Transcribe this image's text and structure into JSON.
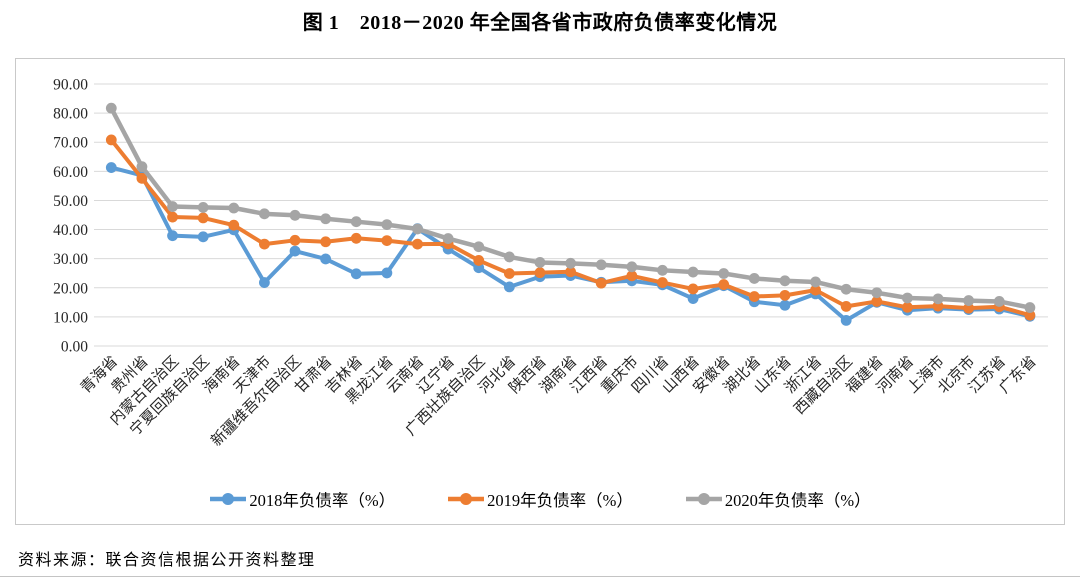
{
  "title": "图 1　2018－2020 年全国各省市政府负债率变化情况",
  "source_note": "资料来源：联合资信根据公开资料整理",
  "chart_data": {
    "type": "line",
    "title": "图 1　2018－2020 年全国各省市政府负债率变化情况",
    "xlabel": "",
    "ylabel": "",
    "ylim": [
      0,
      90
    ],
    "ytick_step": 10,
    "yticks": [
      "0.00",
      "10.00",
      "20.00",
      "30.00",
      "40.00",
      "50.00",
      "60.00",
      "70.00",
      "80.00",
      "90.00"
    ],
    "grid": true,
    "legend_position": "bottom",
    "grid_color": "#d9d9d9",
    "categories": [
      "青海省",
      "贵州省",
      "内蒙古自治区",
      "宁夏回族自治区",
      "海南省",
      "天津市",
      "新疆维吾尔自治区",
      "甘肃省",
      "吉林省",
      "黑龙江省",
      "云南省",
      "辽宁省",
      "广西壮族自治区",
      "河北省",
      "陕西省",
      "湖南省",
      "江西省",
      "重庆市",
      "四川省",
      "山西省",
      "安徽省",
      "湖北省",
      "山东省",
      "浙江省",
      "西藏自治区",
      "福建省",
      "河南省",
      "上海市",
      "北京市",
      "江苏省",
      "广东省"
    ],
    "series": [
      {
        "name": "2018年负债率（%）",
        "year": "2018",
        "color": "#5B9BD5",
        "values": [
          61.3,
          58.6,
          37.9,
          37.5,
          39.9,
          21.8,
          32.6,
          29.9,
          24.8,
          25.1,
          40.3,
          33.3,
          26.9,
          20.3,
          23.8,
          24.2,
          21.9,
          22.4,
          21.0,
          16.3,
          20.7,
          15.2,
          14.0,
          17.9,
          8.8,
          15.0,
          12.3,
          13.0,
          12.5,
          12.7,
          10.2
        ]
      },
      {
        "name": "2019年负债率（%）",
        "year": "2019",
        "color": "#ED7D31",
        "values": [
          70.8,
          57.6,
          44.3,
          44.0,
          41.5,
          35.0,
          36.3,
          35.8,
          37.0,
          36.2,
          35.0,
          35.1,
          29.4,
          24.9,
          25.2,
          25.5,
          21.6,
          24.1,
          21.8,
          19.6,
          21.1,
          17.0,
          17.4,
          19.2,
          13.6,
          15.3,
          13.3,
          13.7,
          13.0,
          13.5,
          10.6
        ]
      },
      {
        "name": "2020年负债率（%）",
        "year": "2020",
        "color": "#A5A5A5",
        "values": [
          81.7,
          61.6,
          47.9,
          47.6,
          47.4,
          45.4,
          44.9,
          43.7,
          42.7,
          41.7,
          40.2,
          36.9,
          34.1,
          30.6,
          28.7,
          28.4,
          27.9,
          27.2,
          26.0,
          25.4,
          24.9,
          23.2,
          22.4,
          22.0,
          19.5,
          18.3,
          16.5,
          16.2,
          15.6,
          15.3,
          13.2
        ]
      }
    ]
  }
}
